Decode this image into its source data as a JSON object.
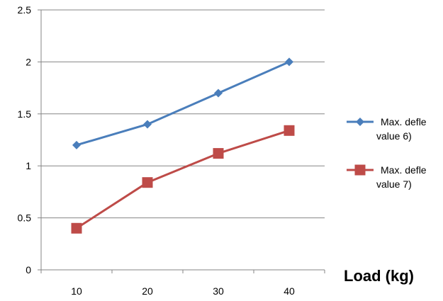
{
  "chart_data": {
    "type": "line",
    "categories": [
      "10",
      "20",
      "30",
      "40"
    ],
    "series": [
      {
        "name": "Max. defle value 6)",
        "legend_lines": [
          "Max. defle",
          "value 6)"
        ],
        "values": [
          1.2,
          1.4,
          1.7,
          2.0
        ],
        "color": "#4a7ebb",
        "marker": "diamond"
      },
      {
        "name": "Max. defle value 7)",
        "legend_lines": [
          "Max. defle",
          "value 7)"
        ],
        "values": [
          0.4,
          0.84,
          1.12,
          1.34
        ],
        "color": "#be4b48",
        "marker": "square"
      }
    ],
    "y_ticks": [
      "0",
      "0.5",
      "1",
      "1.5",
      "2",
      "2.5"
    ],
    "ylim": [
      0,
      2.5
    ],
    "xlabel": "Load (kg)",
    "ylabel": "",
    "title": "",
    "grid": "horizontal",
    "legend_position": "right"
  }
}
